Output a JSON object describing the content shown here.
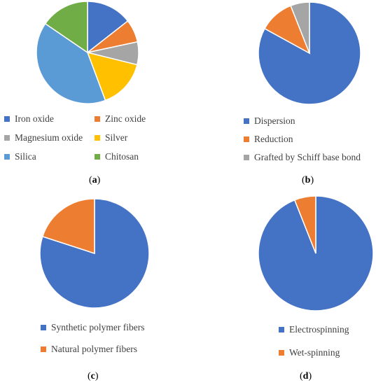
{
  "chart_data": [
    {
      "type": "pie",
      "panel_label": "a",
      "categories": [
        "Iron oxide",
        "Zinc oxide",
        "Magnesium oxide",
        "Silver",
        "Silica",
        "Chitosan"
      ],
      "values": [
        14,
        7,
        7,
        15,
        39,
        15
      ],
      "colors": [
        "#4472C4",
        "#ED7D31",
        "#A5A5A5",
        "#FFC000",
        "#5B9BD5",
        "#70AD47"
      ],
      "legend": "bottom"
    },
    {
      "type": "pie",
      "panel_label": "b",
      "categories": [
        "Dispersion",
        "Reduction",
        "Grafted by Schiff base bond"
      ],
      "values": [
        83,
        11,
        6
      ],
      "colors": [
        "#4472C4",
        "#ED7D31",
        "#A5A5A5"
      ],
      "legend": "bottom"
    },
    {
      "type": "pie",
      "panel_label": "c",
      "categories": [
        "Synthetic polymer fibers",
        "Natural polymer fibers"
      ],
      "values": [
        80,
        20
      ],
      "colors": [
        "#4472C4",
        "#ED7D31"
      ],
      "legend": "bottom"
    },
    {
      "type": "pie",
      "panel_label": "d",
      "categories": [
        "Electrospinning",
        "Wet-spinning"
      ],
      "values": [
        94,
        6
      ],
      "colors": [
        "#4472C4",
        "#ED7D31"
      ],
      "legend": "bottom"
    }
  ]
}
